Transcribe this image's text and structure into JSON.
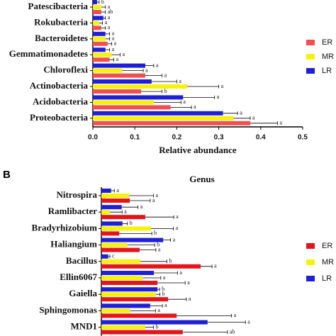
{
  "chart_data": [
    {
      "type": "bar",
      "orientation": "horizontal",
      "categories": [
        "Patescibacteria",
        "Rokubacteria",
        "Bacteroidetes",
        "Gemmatimonadetes",
        "Chloroflexi",
        "Actinobacteria",
        "Acidobacteria",
        "Proteobacteria"
      ],
      "series": [
        {
          "name": "ER",
          "color": "#f04f4f",
          "values": [
            0.02,
            0.02,
            0.035,
            0.04,
            0.125,
            0.115,
            0.185,
            0.375
          ],
          "errors": [
            0.01,
            0.01,
            0.01,
            0.01,
            0.04,
            0.05,
            0.05,
            0.065
          ],
          "letters": [
            "ab",
            "a",
            "a",
            "a",
            "a",
            "b",
            "a",
            "a"
          ]
        },
        {
          "name": "MR",
          "color": "#f7f20a",
          "values": [
            0.02,
            0.015,
            0.03,
            0.045,
            0.07,
            0.225,
            0.145,
            0.335
          ],
          "errors": [
            0.01,
            0.008,
            0.01,
            0.02,
            0.05,
            0.075,
            0.065,
            0.04
          ],
          "letters": [
            "a",
            "a",
            "a",
            "a",
            "a",
            "a",
            "a",
            "a"
          ]
        },
        {
          "name": "LR",
          "color": "#1f1fd8",
          "values": [
            0.01,
            0.025,
            0.03,
            0.03,
            0.125,
            0.14,
            0.215,
            0.31
          ],
          "errors": [
            0.005,
            0.005,
            0.01,
            0.01,
            0.02,
            0.06,
            0.075,
            0.035
          ],
          "letters": [
            "b",
            "a",
            "a",
            "a",
            "a",
            "a",
            "a",
            "a"
          ]
        }
      ],
      "xlim": [
        0,
        0.5
      ],
      "xticks": [
        {
          "value": 0,
          "label": "0.0"
        },
        0.1,
        0.2,
        0.3,
        0.4,
        0.5
      ],
      "xlabel": "Relative abundance",
      "legend": "right"
    },
    {
      "type": "bar",
      "orientation": "horizontal",
      "panel_label": "B",
      "title": "Genus",
      "categories": [
        "Nitrospira",
        "Ramlibacter",
        "Bradyrhizobium",
        "Haliangium",
        "Bacillus",
        "Ellin6067",
        "Gaiella",
        "Sphingomonas",
        "MND1"
      ],
      "series": [
        {
          "name": "ER",
          "color": "#e3151b",
          "values": [
            0.007,
            0.0108,
            0.0044,
            0.0094,
            0.0244,
            0.0138,
            0.0164,
            0.0185,
            0.02
          ],
          "errors": [
            0.005,
            0.007,
            0.008,
            0.004,
            0.0028,
            0.0068,
            0.0045,
            0.0135,
            0.011
          ],
          "letters": [
            "a",
            "a",
            "b",
            "a",
            "a",
            "a",
            "a",
            "a",
            "ab"
          ]
        },
        {
          "name": "MR",
          "color": "#f7f20a",
          "values": [
            0.0068,
            0.0021,
            0.0122,
            0.0064,
            0.0096,
            0.0101,
            0.0134,
            0.0071,
            0.0108
          ],
          "errors": [
            0.006,
            0.003,
            0.0055,
            0.0067,
            0.0065,
            0.0045,
            0.001,
            0.0062,
            0.002
          ],
          "letters": [
            "a",
            "a",
            "a",
            "b",
            "b",
            "a",
            "b",
            "a",
            "b"
          ]
        },
        {
          "name": "LR",
          "color": "#1f1fd8",
          "values": [
            0.0024,
            0.005,
            0.0052,
            0.0152,
            0.0017,
            0.0129,
            0.0138,
            0.012,
            0.0261
          ],
          "errors": [
            0.0008,
            0.004,
            0.0012,
            0.0018,
            0.0004,
            0.0058,
            0.0005,
            0.003,
            0.0093
          ],
          "letters": [
            "a",
            "a",
            "b",
            "a",
            "c",
            "a",
            "b",
            "a",
            "a"
          ]
        }
      ],
      "xlim": [
        0,
        0.05
      ],
      "legend": "right"
    }
  ]
}
